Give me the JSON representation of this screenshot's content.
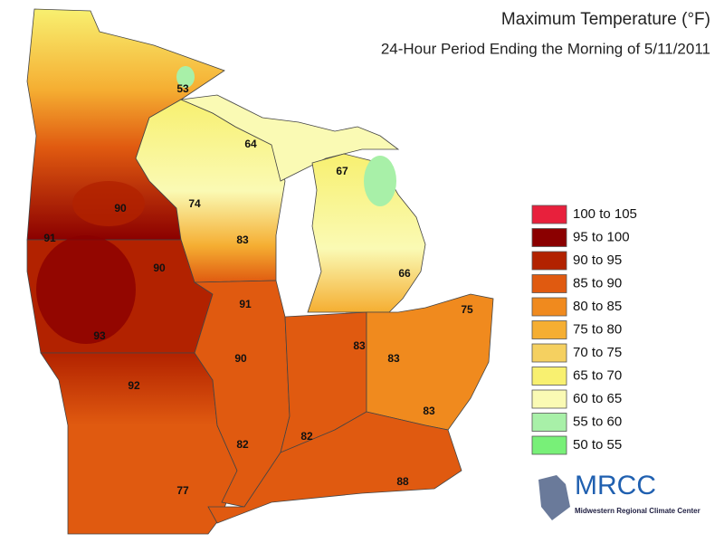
{
  "header": {
    "title": "Maximum Temperature (°F)",
    "subtitle": "24-Hour Period Ending the Morning of 5/11/2011"
  },
  "legend": [
    {
      "label": "100 to 105",
      "color": "#e8203c"
    },
    {
      "label": "95 to 100",
      "color": "#8b0000"
    },
    {
      "label": "90 to 95",
      "color": "#b22200"
    },
    {
      "label": "85 to 90",
      "color": "#e05a10"
    },
    {
      "label": "80 to 85",
      "color": "#f08a1e"
    },
    {
      "label": "75 to 80",
      "color": "#f5ae32"
    },
    {
      "label": "70 to 75",
      "color": "#f5d060"
    },
    {
      "label": "65 to 70",
      "color": "#f8f070"
    },
    {
      "label": "60 to 65",
      "color": "#fafab4"
    },
    {
      "label": "55 to 60",
      "color": "#a8f0a8"
    },
    {
      "label": "50 to 55",
      "color": "#78f078"
    }
  ],
  "station_labels": [
    53,
    64,
    67,
    90,
    74,
    91,
    83,
    90,
    66,
    91,
    75,
    93,
    83,
    90,
    83,
    92,
    83,
    82,
    82,
    77,
    88
  ],
  "logo": {
    "name": "MRCC",
    "subtitle": "Midwestern Regional Climate Center"
  }
}
